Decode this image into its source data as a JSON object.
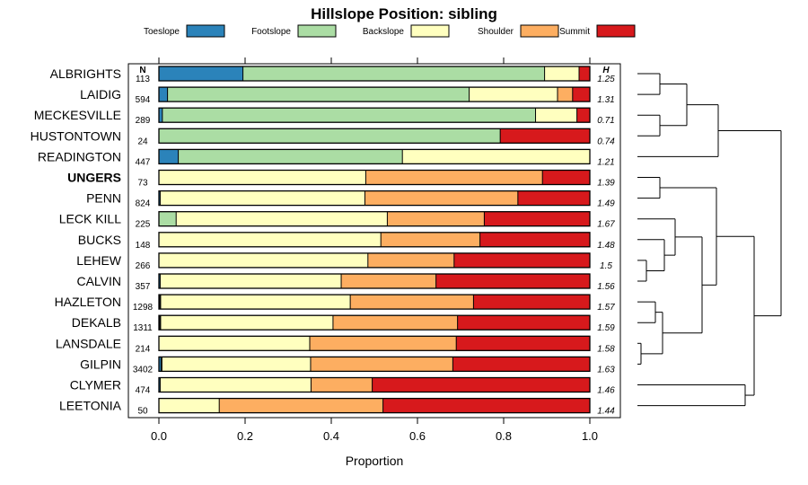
{
  "chart_data": {
    "type": "bar",
    "orientation": "horizontal-stacked",
    "title": "Hillslope Position: sibling",
    "xlabel": "Proportion",
    "ylabel": "",
    "xlim": [
      0,
      1
    ],
    "xticks": [
      0,
      0.2,
      0.4,
      0.6,
      0.8,
      1
    ],
    "xtick_labels": [
      "0.0",
      "0.2",
      "0.4",
      "0.6",
      "0.8",
      "1.0"
    ],
    "n_header": "N",
    "h_header": "H",
    "legend_position": "top",
    "series": [
      {
        "name": "Toeslope",
        "color": "#2b83ba"
      },
      {
        "name": "Footslope",
        "color": "#abdda4"
      },
      {
        "name": "Backslope",
        "color": "#ffffbf"
      },
      {
        "name": "Shoulder",
        "color": "#fdae61"
      },
      {
        "name": "Summit",
        "color": "#d7191c"
      }
    ],
    "categories": [
      {
        "label": "ALBRIGHTS",
        "bold": false,
        "n": "113",
        "h": "1.25",
        "values": [
          0.195,
          0.7,
          0.08,
          0.0,
          0.025
        ]
      },
      {
        "label": "LAIDIG",
        "bold": false,
        "n": "594",
        "h": "1.31",
        "values": [
          0.02,
          0.7,
          0.205,
          0.035,
          0.04
        ]
      },
      {
        "label": "MECKESVILLE",
        "bold": false,
        "n": "289",
        "h": "0.71",
        "values": [
          0.008,
          0.866,
          0.096,
          0.0,
          0.03
        ]
      },
      {
        "label": "HUSTONTOWN",
        "bold": false,
        "n": "24",
        "h": "0.74",
        "values": [
          0.0,
          0.792,
          0.0,
          0.0,
          0.208
        ]
      },
      {
        "label": "READINGTON",
        "bold": false,
        "n": "447",
        "h": "1.21",
        "values": [
          0.045,
          0.52,
          0.435,
          0.0,
          0.0
        ]
      },
      {
        "label": "UNGERS",
        "bold": true,
        "n": "73",
        "h": "1.39",
        "values": [
          0.0,
          0.0,
          0.48,
          0.41,
          0.11
        ]
      },
      {
        "label": "PENN",
        "bold": false,
        "n": "824",
        "h": "1.49",
        "values": [
          0.003,
          0.0,
          0.475,
          0.355,
          0.167
        ]
      },
      {
        "label": "LECK KILL",
        "bold": false,
        "n": "225",
        "h": "1.67",
        "values": [
          0.0,
          0.04,
          0.49,
          0.225,
          0.245
        ]
      },
      {
        "label": "BUCKS",
        "bold": false,
        "n": "148",
        "h": "1.48",
        "values": [
          0.0,
          0.0,
          0.515,
          0.23,
          0.255
        ]
      },
      {
        "label": "LEHEW",
        "bold": false,
        "n": "266",
        "h": "1.5",
        "values": [
          0.0,
          0.0,
          0.485,
          0.2,
          0.315
        ]
      },
      {
        "label": "CALVIN",
        "bold": false,
        "n": "357",
        "h": "1.56",
        "values": [
          0.003,
          0.0,
          0.42,
          0.22,
          0.357
        ]
      },
      {
        "label": "HAZLETON",
        "bold": false,
        "n": "1298",
        "h": "1.57",
        "values": [
          0.002,
          0.002,
          0.44,
          0.286,
          0.27
        ]
      },
      {
        "label": "DEKALB",
        "bold": false,
        "n": "1311",
        "h": "1.59",
        "values": [
          0.002,
          0.002,
          0.4,
          0.289,
          0.307
        ]
      },
      {
        "label": "LANSDALE",
        "bold": false,
        "n": "214",
        "h": "1.58",
        "values": [
          0.0,
          0.0,
          0.35,
          0.34,
          0.31
        ]
      },
      {
        "label": "GILPIN",
        "bold": false,
        "n": "3402",
        "h": "1.63",
        "values": [
          0.005,
          0.002,
          0.345,
          0.33,
          0.318
        ]
      },
      {
        "label": "CLYMER",
        "bold": false,
        "n": "474",
        "h": "1.46",
        "values": [
          0.003,
          0.0,
          0.35,
          0.142,
          0.505
        ]
      },
      {
        "label": "LEETONIA",
        "bold": false,
        "n": "50",
        "h": "1.44",
        "values": [
          0.0,
          0.0,
          0.14,
          0.38,
          0.48
        ]
      }
    ],
    "dendrogram": {
      "description": "hierarchical clustering of rows",
      "merges": [
        [
          0,
          1,
          0.25
        ],
        [
          2,
          3,
          0.25
        ],
        [
          -1,
          -2,
          0.55
        ],
        [
          -3,
          4,
          0.9
        ],
        [
          5,
          6,
          0.25
        ],
        [
          9,
          10,
          0.1
        ],
        [
          8,
          -6,
          0.3
        ],
        [
          7,
          -7,
          0.42
        ],
        [
          11,
          12,
          0.2
        ],
        [
          13,
          14,
          0.04
        ],
        [
          -9,
          -10,
          0.28
        ],
        [
          -8,
          -11,
          0.72
        ],
        [
          -5,
          -12,
          0.88
        ],
        [
          15,
          16,
          1.2
        ],
        [
          -13,
          -14,
          1.3
        ],
        [
          -4,
          -15,
          1.6
        ]
      ]
    }
  }
}
